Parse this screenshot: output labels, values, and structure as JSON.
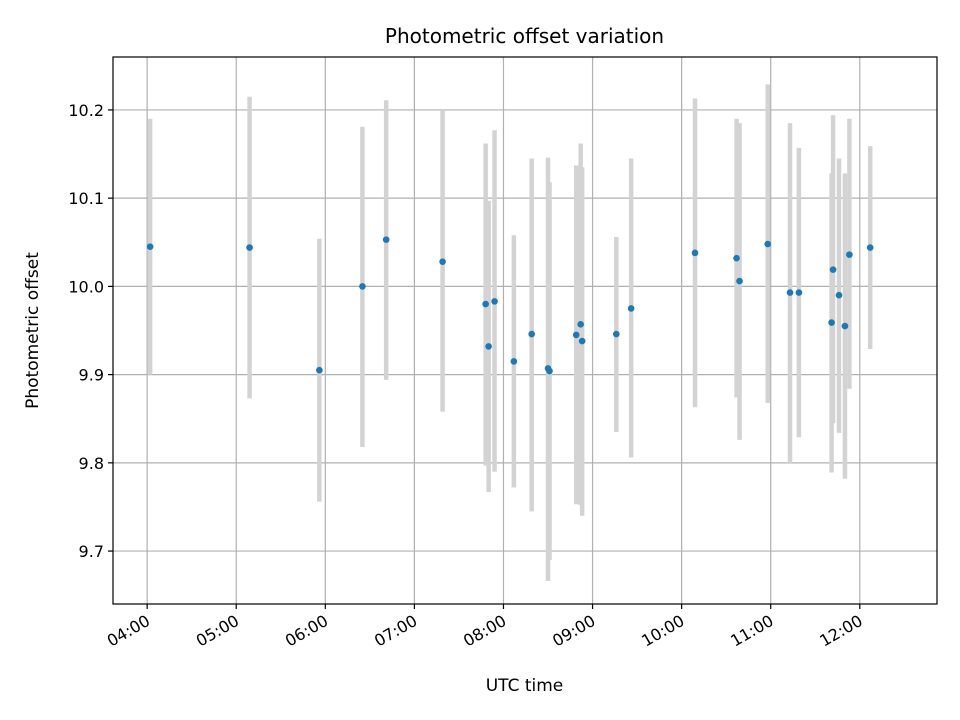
{
  "chart_data": {
    "type": "scatter",
    "title": "Photometric offset variation",
    "xlabel": "UTC time",
    "ylabel": "Photometric offset",
    "xlim": [
      "03:37",
      "12:52"
    ],
    "ylim": [
      9.64,
      10.26
    ],
    "x_ticks": [
      "04:00",
      "05:00",
      "06:00",
      "07:00",
      "08:00",
      "09:00",
      "10:00",
      "11:00",
      "12:00"
    ],
    "y_ticks": [
      "9.7",
      "9.8",
      "9.9",
      "10.0",
      "10.1",
      "10.2"
    ],
    "grid": true,
    "colors": {
      "points": "#1f77b4",
      "error_bars": "#d3d3d3",
      "grid": "#b0b0b0"
    },
    "series": [
      {
        "points": [
          {
            "x": "04:02",
            "y": 10.045,
            "ylow": 9.9,
            "yhigh": 10.19
          },
          {
            "x": "05:09",
            "y": 10.044,
            "ylow": 9.873,
            "yhigh": 10.215
          },
          {
            "x": "05:56",
            "y": 9.905,
            "ylow": 9.756,
            "yhigh": 10.054
          },
          {
            "x": "06:25",
            "y": 10.0,
            "ylow": 9.818,
            "yhigh": 10.181
          },
          {
            "x": "06:41",
            "y": 10.053,
            "ylow": 9.894,
            "yhigh": 10.211
          },
          {
            "x": "07:19",
            "y": 10.028,
            "ylow": 9.858,
            "yhigh": 10.199
          },
          {
            "x": "07:48",
            "y": 9.98,
            "ylow": 9.797,
            "yhigh": 10.162
          },
          {
            "x": "07:50",
            "y": 9.932,
            "ylow": 9.767,
            "yhigh": 10.097
          },
          {
            "x": "07:54",
            "y": 9.983,
            "ylow": 9.79,
            "yhigh": 10.177
          },
          {
            "x": "08:07",
            "y": 9.915,
            "ylow": 9.772,
            "yhigh": 10.058
          },
          {
            "x": "08:19",
            "y": 9.946,
            "ylow": 9.745,
            "yhigh": 10.145
          },
          {
            "x": "08:30",
            "y": 9.907,
            "ylow": 9.666,
            "yhigh": 10.146
          },
          {
            "x": "08:31",
            "y": 9.904,
            "ylow": 9.69,
            "yhigh": 10.118
          },
          {
            "x": "08:49",
            "y": 9.945,
            "ylow": 9.753,
            "yhigh": 10.137
          },
          {
            "x": "08:52",
            "y": 9.957,
            "ylow": 9.752,
            "yhigh": 10.162
          },
          {
            "x": "08:53",
            "y": 9.938,
            "ylow": 9.74,
            "yhigh": 10.135
          },
          {
            "x": "09:16",
            "y": 9.946,
            "ylow": 9.835,
            "yhigh": 10.056
          },
          {
            "x": "09:26",
            "y": 9.975,
            "ylow": 9.806,
            "yhigh": 10.145
          },
          {
            "x": "10:09",
            "y": 10.038,
            "ylow": 9.863,
            "yhigh": 10.213
          },
          {
            "x": "10:37",
            "y": 10.032,
            "ylow": 9.874,
            "yhigh": 10.19
          },
          {
            "x": "10:39",
            "y": 10.006,
            "ylow": 9.826,
            "yhigh": 10.185
          },
          {
            "x": "10:58",
            "y": 10.048,
            "ylow": 9.868,
            "yhigh": 10.229
          },
          {
            "x": "11:13",
            "y": 9.993,
            "ylow": 9.8,
            "yhigh": 10.185
          },
          {
            "x": "11:19",
            "y": 9.993,
            "ylow": 9.829,
            "yhigh": 10.157
          },
          {
            "x": "11:41",
            "y": 9.959,
            "ylow": 9.789,
            "yhigh": 10.128
          },
          {
            "x": "11:42",
            "y": 10.019,
            "ylow": 9.845,
            "yhigh": 10.194
          },
          {
            "x": "11:46",
            "y": 9.99,
            "ylow": 9.834,
            "yhigh": 10.145
          },
          {
            "x": "11:50",
            "y": 9.955,
            "ylow": 9.782,
            "yhigh": 10.128
          },
          {
            "x": "11:53",
            "y": 10.036,
            "ylow": 9.884,
            "yhigh": 10.19
          },
          {
            "x": "12:07",
            "y": 10.044,
            "ylow": 9.929,
            "yhigh": 10.159
          }
        ]
      }
    ]
  }
}
